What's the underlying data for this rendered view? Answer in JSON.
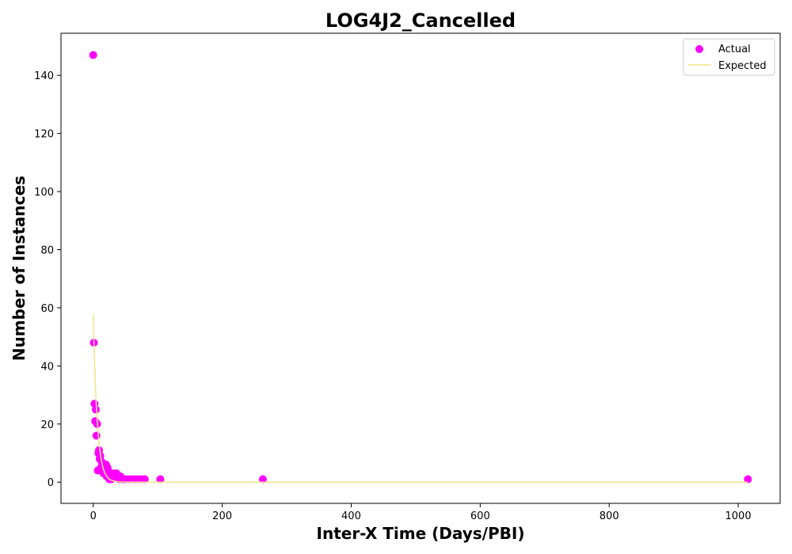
{
  "chart_data": {
    "type": "scatter",
    "title": "LOG4J2_Cancelled",
    "xlabel": "Inter-X Time (Days/PBI)",
    "ylabel": "Number of Instances",
    "xlim": [
      -50,
      1065
    ],
    "ylim": [
      -7.3,
      154.5
    ],
    "xticks": [
      0,
      200,
      400,
      600,
      800,
      1000
    ],
    "yticks": [
      0,
      20,
      40,
      60,
      80,
      100,
      120,
      140
    ],
    "grid": false,
    "legend_position": "top-right",
    "colors": {
      "actual": "#ff00ff",
      "expected": "#f0e68c"
    },
    "series": [
      {
        "name": "Actual",
        "kind": "scatter",
        "x": [
          0,
          1,
          2,
          3,
          4,
          5,
          6,
          7,
          8,
          9,
          10,
          11,
          12,
          13,
          14,
          15,
          16,
          17,
          18,
          19,
          20,
          21,
          22,
          23,
          24,
          25,
          26,
          27,
          28,
          30,
          32,
          34,
          36,
          38,
          40,
          42,
          45,
          48,
          50,
          55,
          60,
          65,
          70,
          75,
          80,
          104,
          263,
          1015
        ],
        "y": [
          147,
          48,
          27,
          21,
          25,
          16,
          20,
          4,
          10,
          11,
          8,
          9,
          5,
          7,
          6,
          4,
          3,
          5,
          4,
          3,
          6,
          2,
          5,
          4,
          3,
          1,
          2,
          3,
          1,
          2,
          3,
          2,
          3,
          2,
          1,
          2,
          1,
          1,
          1,
          1,
          1,
          1,
          1,
          1,
          1,
          1,
          1,
          1
        ]
      },
      {
        "name": "Expected",
        "kind": "line",
        "x": [
          0,
          1,
          2,
          3,
          4,
          5,
          6,
          7,
          8,
          9,
          10,
          12,
          14,
          16,
          18,
          20,
          23,
          26,
          30,
          35,
          40,
          50,
          60,
          80,
          100,
          200,
          400,
          600,
          800,
          1015
        ],
        "y": [
          57.7,
          49.1,
          41.8,
          35.5,
          30.2,
          25.7,
          21.9,
          18.6,
          15.8,
          13.5,
          11.5,
          8.3,
          6.0,
          4.3,
          3.1,
          2.3,
          1.4,
          0.9,
          0.5,
          0.2,
          0.1,
          0.02,
          0,
          0,
          0,
          0,
          0,
          0,
          0,
          0
        ]
      }
    ]
  }
}
